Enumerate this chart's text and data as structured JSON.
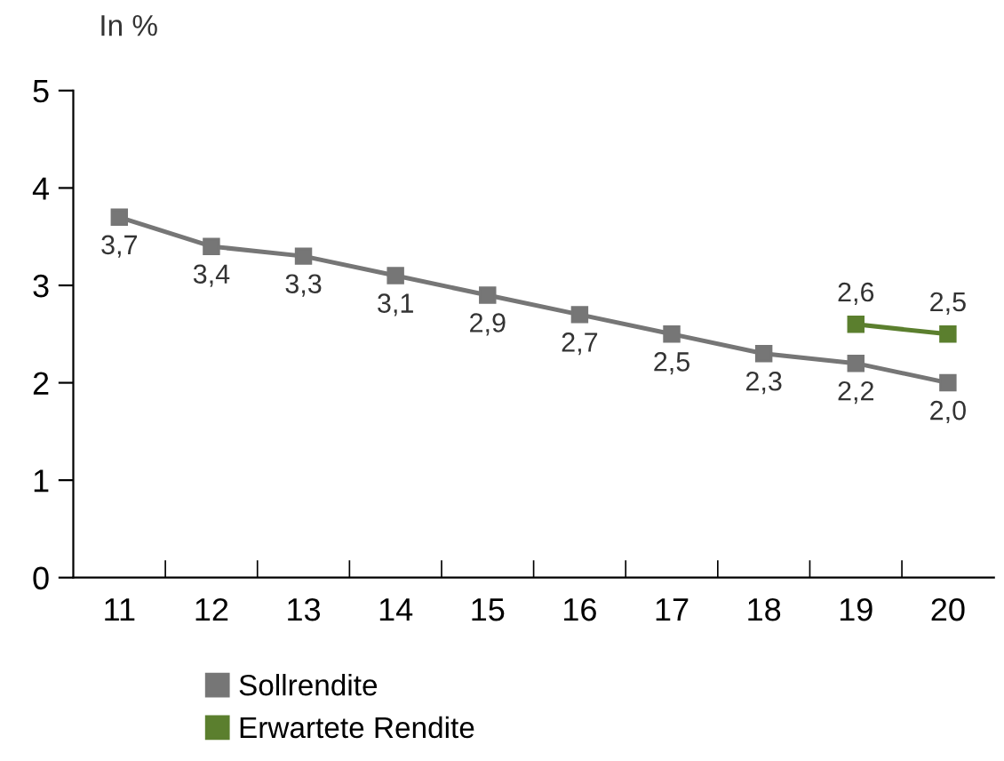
{
  "chart_data": {
    "type": "line",
    "ylabel": "In %",
    "categories": [
      "11",
      "12",
      "13",
      "14",
      "15",
      "16",
      "17",
      "18",
      "19",
      "20"
    ],
    "series": [
      {
        "name": "Sollrendite",
        "color": "#767676",
        "values": [
          3.7,
          3.4,
          3.3,
          3.1,
          2.9,
          2.7,
          2.5,
          2.3,
          2.2,
          2.0
        ],
        "value_labels": [
          "3,7",
          "3,4",
          "3,3",
          "3,1",
          "2,9",
          "2,7",
          "2,5",
          "2,3",
          "2,2",
          "2,0"
        ]
      },
      {
        "name": "Erwartete Rendite",
        "color": "#5b7f2e",
        "values": [
          null,
          null,
          null,
          null,
          null,
          null,
          null,
          null,
          2.6,
          2.5
        ],
        "value_labels": [
          null,
          null,
          null,
          null,
          null,
          null,
          null,
          null,
          "2,6",
          "2,5"
        ]
      }
    ],
    "ylim": [
      0,
      5
    ],
    "yticks": [
      0,
      1,
      2,
      3,
      4,
      5
    ],
    "grid": false,
    "legend": "bottom",
    "marker": "square",
    "line_style": "solid"
  }
}
